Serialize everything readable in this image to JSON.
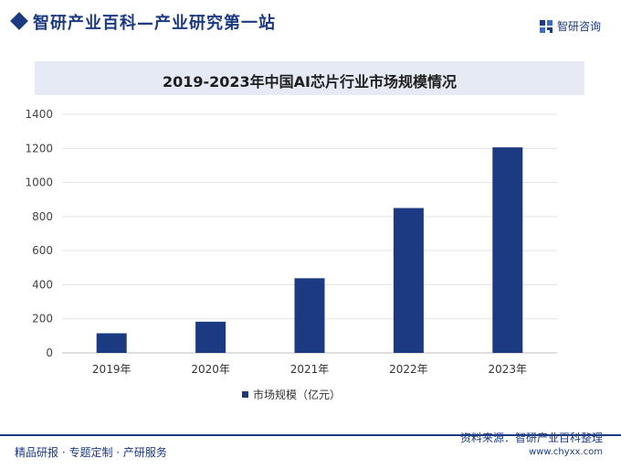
{
  "header": {
    "site_title": "智研产业百科—产业研究第一站",
    "brand_name": "智研咨询",
    "brand_icon": "zhiyan-logo-icon"
  },
  "colors": {
    "primary": "#1b3a82",
    "bar": "#1b3a82",
    "title_band": "#e5eaf4"
  },
  "chart_data": {
    "type": "bar",
    "title": "2019-2023年中国AI芯片行业市场规模情况",
    "categories": [
      "2019年",
      "2020年",
      "2021年",
      "2022年",
      "2023年"
    ],
    "series": [
      {
        "name": "市场规模（亿元）",
        "values": [
          115,
          183,
          438,
          850,
          1206
        ]
      }
    ],
    "y_ticks": [
      "0",
      "200",
      "400",
      "600",
      "800",
      "1000",
      "1200",
      "1400"
    ],
    "ylim": [
      0,
      1400
    ],
    "grid": true,
    "legend_position": "bottom",
    "xlabel": "",
    "ylabel": ""
  },
  "footer": {
    "tagline": "精品研报 · 专题定制 · 产研服务",
    "source": "资料来源：智研产业百科整理",
    "domain": "www.chyxx.com"
  }
}
